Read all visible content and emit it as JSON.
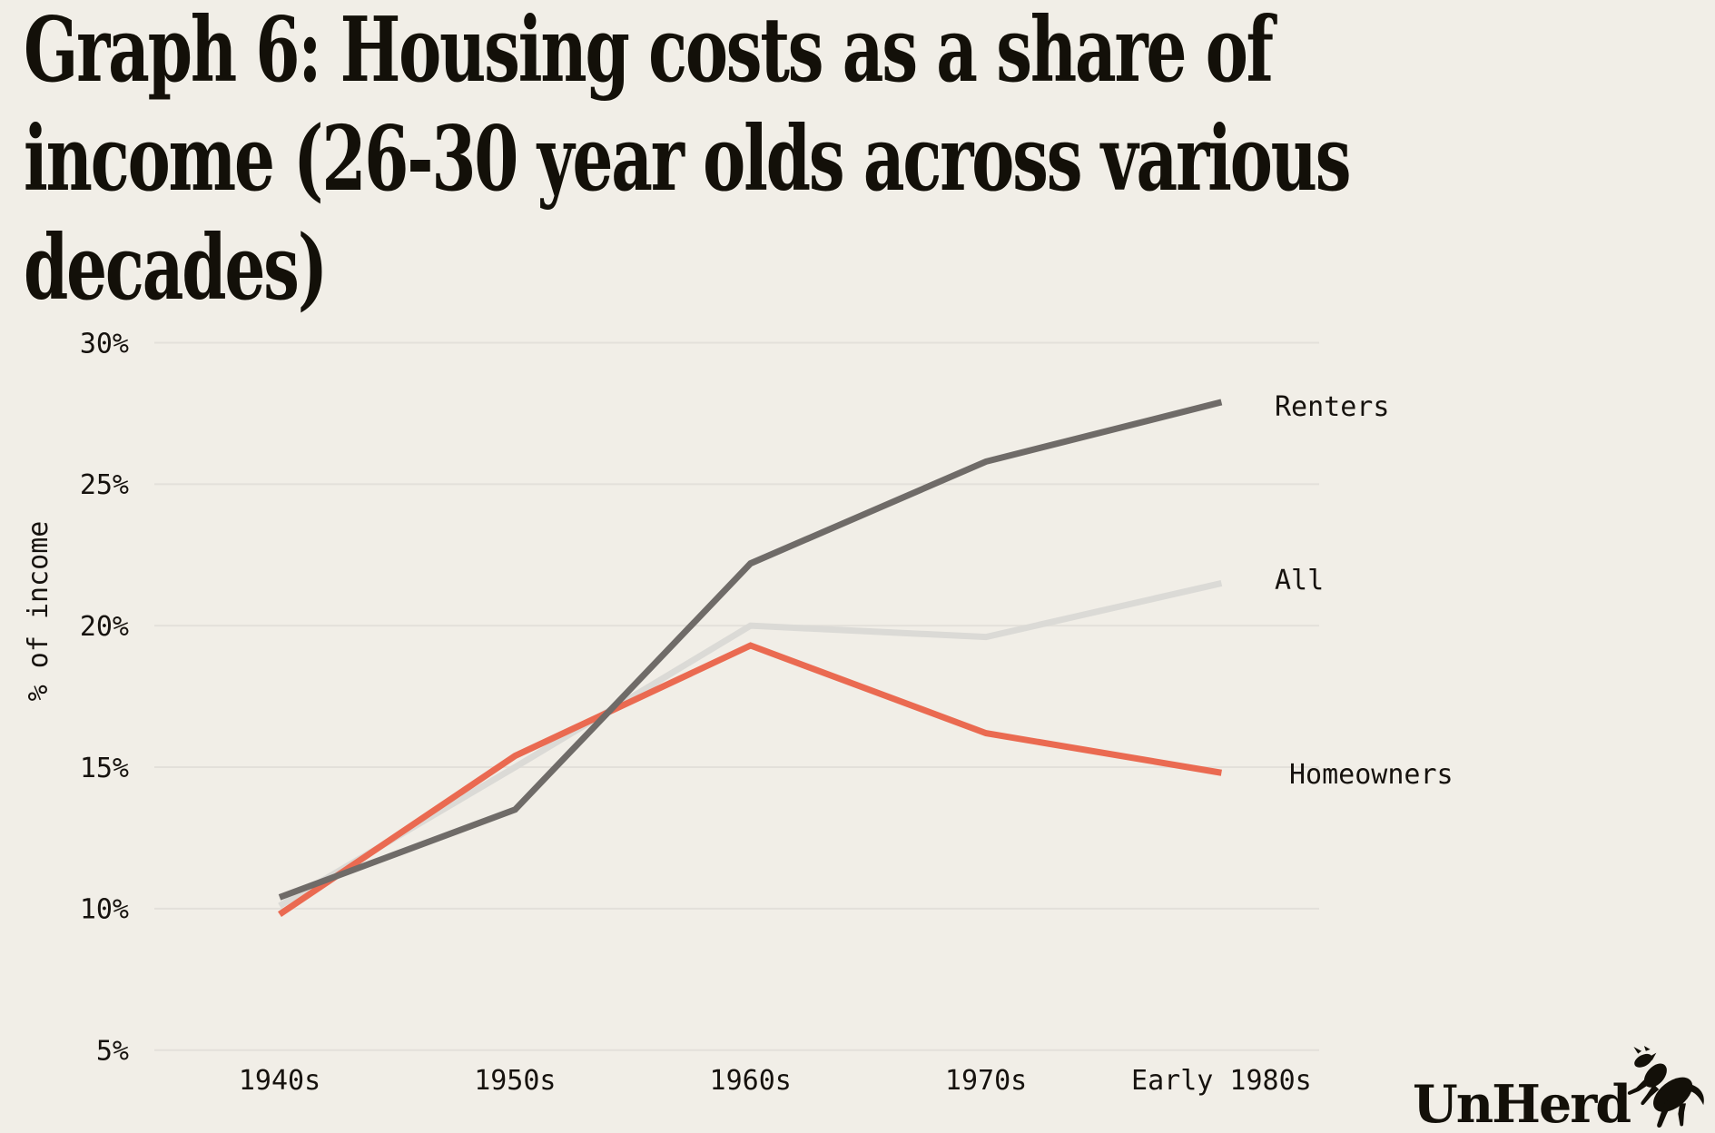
{
  "page": {
    "background_color": "#F1EEE7",
    "text_color": "#16120E"
  },
  "title": {
    "full": "Graph 6: Housing costs as a share of income (26-30 year olds across various decades)",
    "lines": [
      "Graph 6: Housing costs as a share of",
      "income (26-30 year olds across various",
      "decades)"
    ]
  },
  "chart_data": {
    "type": "line",
    "title": "Graph 6: Housing costs as a share of income (26-30 year olds across various decades)",
    "categories": [
      "1940s",
      "1950s",
      "1960s",
      "1970s",
      "Early 1980s"
    ],
    "series": [
      {
        "name": "Renters",
        "color": "#6F6B68",
        "values": [
          10.4,
          13.5,
          22.2,
          25.8,
          27.9
        ]
      },
      {
        "name": "All",
        "color": "#DBDAD6",
        "values": [
          10.1,
          15.0,
          20.0,
          19.6,
          21.5
        ]
      },
      {
        "name": "Homeowners",
        "color": "#EA6A51",
        "values": [
          9.8,
          15.4,
          19.3,
          16.2,
          14.8
        ]
      }
    ],
    "xlabel": "",
    "ylabel": "% of income",
    "ylim": [
      5,
      30
    ],
    "yticks": [
      30,
      25,
      20,
      15,
      10,
      5
    ],
    "ytick_labels": [
      "30%",
      "25%",
      "20%",
      "15%",
      "10%",
      "5%"
    ],
    "grid": true,
    "gridline_color": "#E3E0DA",
    "legend_position": "right-inline-labels"
  },
  "logo": {
    "wordmark": "UnHerd",
    "icon": "unherd-cow-icon"
  }
}
